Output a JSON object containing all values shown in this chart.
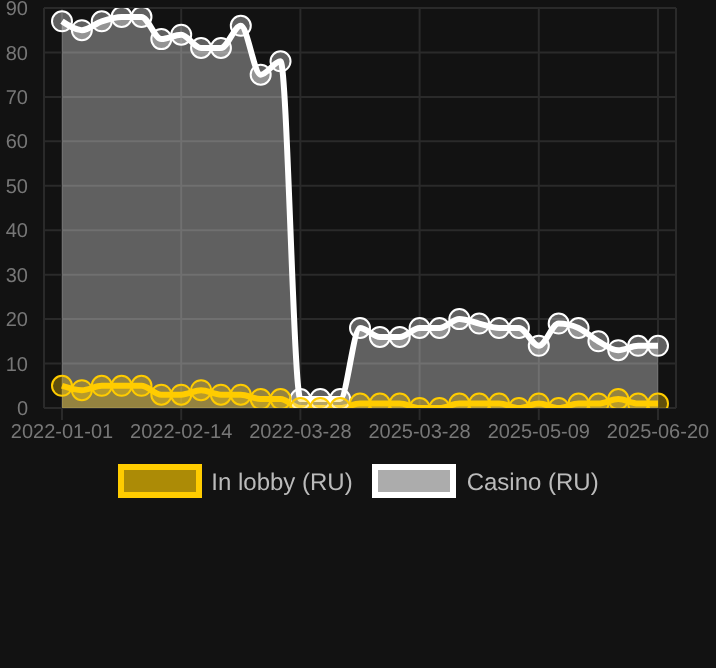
{
  "chart_data": {
    "type": "area",
    "categories": [
      "2022-01-01",
      null,
      null,
      null,
      null,
      null,
      "2022-02-14",
      null,
      null,
      null,
      null,
      null,
      "2022-03-28",
      null,
      null,
      null,
      null,
      null,
      "2025-03-28",
      null,
      null,
      null,
      null,
      null,
      "2025-05-09",
      null,
      null,
      null,
      null,
      null,
      "2025-06-20"
    ],
    "series": [
      {
        "name": "In lobby (RU)",
        "color": "#ffcc00",
        "values": [
          5,
          4,
          5,
          5,
          5,
          3,
          3,
          4,
          3,
          3,
          2,
          2,
          0,
          0,
          0,
          1,
          1,
          1,
          0,
          0,
          1,
          1,
          1,
          0,
          1,
          0,
          1,
          1,
          2,
          1,
          1
        ]
      },
      {
        "name": "Casino (RU)",
        "color": "#ffffff",
        "values": [
          87,
          85,
          87,
          88,
          88,
          83,
          84,
          81,
          81,
          86,
          75,
          78,
          2,
          2,
          2,
          18,
          16,
          16,
          18,
          18,
          20,
          19,
          18,
          18,
          14,
          19,
          18,
          15,
          13,
          14,
          14
        ]
      }
    ],
    "ylim": [
      0,
      90
    ],
    "yticks": [
      0,
      10,
      20,
      30,
      40,
      50,
      60,
      70,
      80,
      90
    ],
    "grid": true,
    "legend": "bottom",
    "marker": "circle"
  }
}
